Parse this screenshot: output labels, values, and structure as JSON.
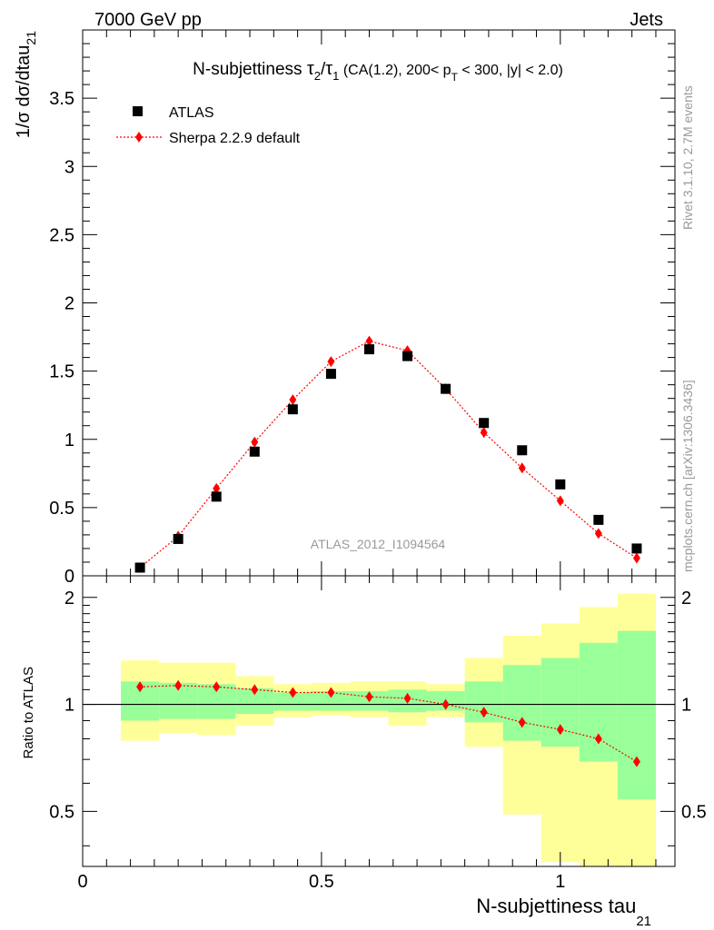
{
  "header": {
    "left": "7000 GeV pp",
    "right": "Jets"
  },
  "side_text": {
    "rivet": "Rivet 3.1.10,  2.7M events",
    "mcplots": "mcplots.cern.ch [arXiv:1306.3436]"
  },
  "watermark": "ATLAS_2012_I1094564",
  "colors": {
    "data": "#000000",
    "mc": "#ff0000",
    "band_inner": "#99ff99",
    "band_outer": "#ffff99"
  },
  "chart_data": [
    {
      "type": "scatter",
      "panel": "main",
      "title": {
        "prefix": "N-subjettiness ",
        "tau": "τ",
        "sub2": "2",
        "slash": "/",
        "sub1": "1",
        "mid": " (CA(1.2), 200< p",
        "subT": "T",
        "suffix": " < 300, |y| < 2.0)"
      },
      "ylabel": {
        "main": "1/σ dσ/dtau",
        "sub": "21"
      },
      "ylim": [
        0,
        4.0
      ],
      "yticks": [
        "0",
        "0.5",
        "1",
        "1.5",
        "2",
        "2.5",
        "3",
        "3.5"
      ],
      "yticks_values": [
        0,
        0.5,
        1,
        1.5,
        2,
        2.5,
        3,
        3.5
      ],
      "legend": {
        "position": "top-left",
        "entries": [
          {
            "label": "ATLAS",
            "marker": "square"
          },
          {
            "label": "Sherpa 2.2.9 default",
            "marker": "diamond-dotted-line"
          }
        ]
      },
      "x": [
        0.12,
        0.2,
        0.28,
        0.36,
        0.44,
        0.52,
        0.6,
        0.68,
        0.76,
        0.84,
        0.92,
        1.0,
        1.08,
        1.16
      ],
      "series": [
        {
          "name": "ATLAS",
          "values": [
            0.06,
            0.27,
            0.58,
            0.91,
            1.22,
            1.48,
            1.66,
            1.61,
            1.37,
            1.12,
            0.92,
            0.67,
            0.41,
            0.2
          ]
        },
        {
          "name": "Sherpa 2.2.9 default",
          "values": [
            0.06,
            0.29,
            0.64,
            0.98,
            1.29,
            1.57,
            1.72,
            1.65,
            1.37,
            1.05,
            0.79,
            0.55,
            0.31,
            0.13
          ]
        }
      ]
    },
    {
      "type": "line",
      "panel": "ratio",
      "ylabel": "Ratio to ATLAS",
      "xlabel": {
        "main": "N-subjettiness tau",
        "sub": "21"
      },
      "xlim": [
        0,
        1.24
      ],
      "xticks": [
        "0",
        "0.5",
        "1"
      ],
      "xticks_values": [
        0,
        0.5,
        1
      ],
      "ylim": [
        0.35,
        2.3
      ],
      "yticks": [
        "0.5",
        "1",
        "2"
      ],
      "yticks_values": [
        0.5,
        1,
        2
      ],
      "reference_line": 1,
      "bins": [
        [
          0.08,
          0.16
        ],
        [
          0.16,
          0.24
        ],
        [
          0.24,
          0.32
        ],
        [
          0.32,
          0.4
        ],
        [
          0.4,
          0.48
        ],
        [
          0.48,
          0.56
        ],
        [
          0.56,
          0.64
        ],
        [
          0.64,
          0.72
        ],
        [
          0.72,
          0.8
        ],
        [
          0.8,
          0.88
        ],
        [
          0.88,
          0.96
        ],
        [
          0.96,
          1.04
        ],
        [
          1.04,
          1.12
        ],
        [
          1.12,
          1.2
        ]
      ],
      "band_outer": [
        [
          0.79,
          1.33
        ],
        [
          0.83,
          1.31
        ],
        [
          0.82,
          1.31
        ],
        [
          0.87,
          1.2
        ],
        [
          0.92,
          1.14
        ],
        [
          0.93,
          1.15
        ],
        [
          0.92,
          1.16
        ],
        [
          0.87,
          1.16
        ],
        [
          0.92,
          1.14
        ],
        [
          0.76,
          1.35
        ],
        [
          0.49,
          1.56
        ],
        [
          0.36,
          1.69
        ],
        [
          0.35,
          1.88
        ],
        [
          0.35,
          2.05
        ]
      ],
      "band_inner": [
        [
          0.9,
          1.16
        ],
        [
          0.91,
          1.15
        ],
        [
          0.91,
          1.14
        ],
        [
          0.94,
          1.11
        ],
        [
          0.96,
          1.08
        ],
        [
          0.96,
          1.09
        ],
        [
          0.96,
          1.09
        ],
        [
          0.95,
          1.1
        ],
        [
          0.96,
          1.09
        ],
        [
          0.89,
          1.16
        ],
        [
          0.79,
          1.29
        ],
        [
          0.76,
          1.35
        ],
        [
          0.69,
          1.49
        ],
        [
          0.54,
          1.61
        ]
      ],
      "x": [
        0.12,
        0.2,
        0.28,
        0.36,
        0.44,
        0.52,
        0.6,
        0.68,
        0.76,
        0.84,
        0.92,
        1.0,
        1.08,
        1.16
      ],
      "series": [
        {
          "name": "Sherpa 2.2.9 default",
          "values": [
            1.12,
            1.13,
            1.12,
            1.1,
            1.08,
            1.08,
            1.05,
            1.04,
            1.0,
            0.95,
            0.89,
            0.85,
            0.8,
            0.69
          ]
        }
      ]
    }
  ]
}
